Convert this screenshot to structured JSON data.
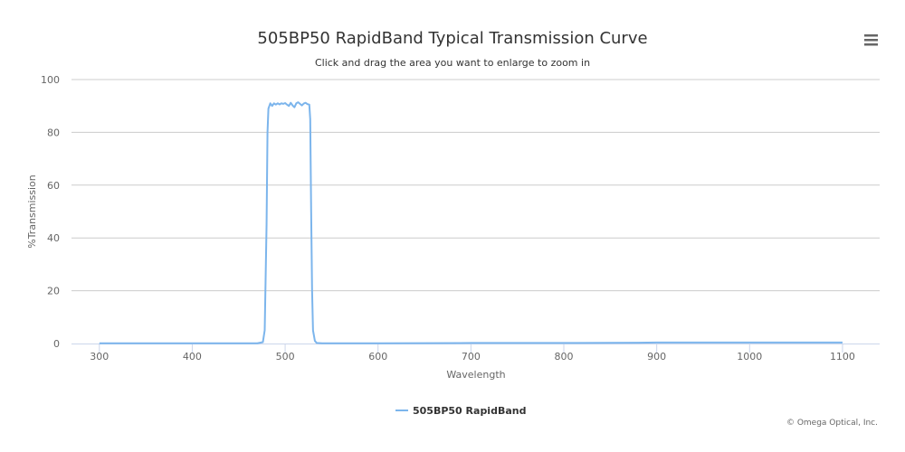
{
  "title": "505BP50 RapidBand Typical Transmission Curve",
  "subtitle": "Click and drag the area you want to enlarge to zoom in",
  "credits": "© Omega Optical, Inc.",
  "menu": {
    "icon": "hamburger-menu-icon"
  },
  "colors": {
    "series": "#7cb5ec",
    "grid": "#cccccc",
    "axis": "#ccd6eb",
    "title": "#333333",
    "label": "#666666"
  },
  "chart_data": {
    "type": "line",
    "title": "505BP50 RapidBand Typical Transmission Curve",
    "subtitle": "Click and drag the area you want to enlarge to zoom in",
    "xlabel": "Wavelength",
    "ylabel": "%Transmission",
    "xlim": [
      270,
      1140
    ],
    "ylim": [
      0,
      100
    ],
    "x_ticks": [
      300,
      400,
      500,
      600,
      700,
      800,
      900,
      1000,
      1100
    ],
    "y_ticks": [
      0,
      20,
      40,
      60,
      80,
      100
    ],
    "grid": true,
    "legend_position": "bottom-center",
    "series": [
      {
        "name": "505BP50 RapidBand",
        "x": [
          300,
          400,
          470,
          476,
          478,
          480,
          481,
          482,
          484,
          486,
          488,
          490,
          492,
          494,
          496,
          498,
          500,
          502,
          504,
          506,
          508,
          510,
          512,
          514,
          516,
          518,
          520,
          522,
          524,
          526,
          527,
          528,
          529,
          530,
          532,
          534,
          540,
          600,
          700,
          800,
          880,
          900,
          950,
          1000,
          1050,
          1100
        ],
        "values": [
          0.1,
          0.1,
          0.1,
          0.5,
          5,
          45,
          80,
          89,
          91,
          90,
          91,
          90.5,
          91,
          90.6,
          91,
          90.8,
          91.1,
          90.5,
          90,
          91.2,
          90.2,
          89.5,
          91,
          91.4,
          90.8,
          90.2,
          90.9,
          91.2,
          90.7,
          90.5,
          85,
          50,
          20,
          5,
          1,
          0.2,
          0.1,
          0.1,
          0.2,
          0.2,
          0.3,
          0.4,
          0.4,
          0.4,
          0.4,
          0.4
        ]
      }
    ]
  }
}
